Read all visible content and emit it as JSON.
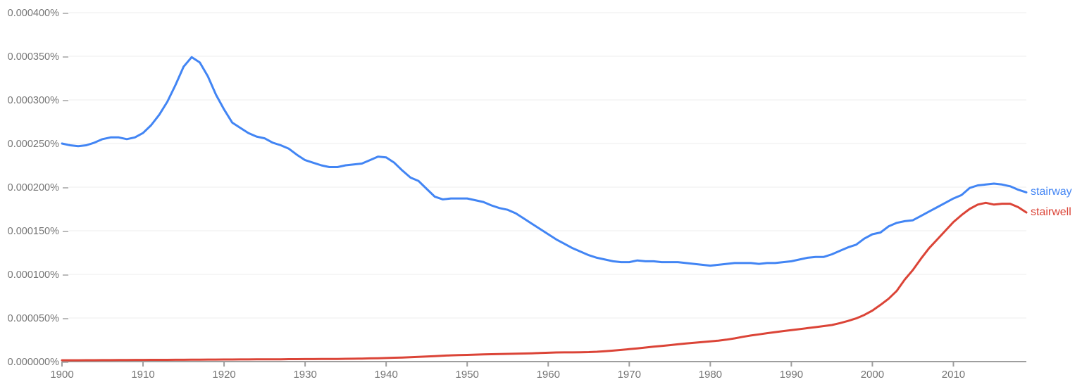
{
  "chart_data": {
    "type": "line",
    "title": "",
    "xlabel": "",
    "ylabel": "",
    "grid": true,
    "legend_position": "line-end-right",
    "x_axis": {
      "range": [
        1900,
        2019
      ],
      "tick_years": [
        1900,
        1910,
        1920,
        1930,
        1940,
        1950,
        1960,
        1970,
        1980,
        1990,
        2000,
        2010
      ]
    },
    "y_axis": {
      "range_percent": [
        0,
        0.0004
      ],
      "tick_values_percent": [
        0.0,
        5e-05,
        0.0001,
        0.00015,
        0.0002,
        0.00025,
        0.0003,
        0.00035,
        0.0004
      ],
      "tick_labels": [
        "0.000000%",
        "0.000050%",
        "0.000100%",
        "0.000150%",
        "0.000200%",
        "0.000250%",
        "0.000300%",
        "0.000350%",
        "0.000400%"
      ],
      "tick_mark": "–"
    },
    "years": [
      1900,
      1901,
      1902,
      1903,
      1904,
      1905,
      1906,
      1907,
      1908,
      1909,
      1910,
      1911,
      1912,
      1913,
      1914,
      1915,
      1916,
      1917,
      1918,
      1919,
      1920,
      1921,
      1922,
      1923,
      1924,
      1925,
      1926,
      1927,
      1928,
      1929,
      1930,
      1931,
      1932,
      1933,
      1934,
      1935,
      1936,
      1937,
      1938,
      1939,
      1940,
      1941,
      1942,
      1943,
      1944,
      1945,
      1946,
      1947,
      1948,
      1949,
      1950,
      1951,
      1952,
      1953,
      1954,
      1955,
      1956,
      1957,
      1958,
      1959,
      1960,
      1961,
      1962,
      1963,
      1964,
      1965,
      1966,
      1967,
      1968,
      1969,
      1970,
      1971,
      1972,
      1973,
      1974,
      1975,
      1976,
      1977,
      1978,
      1979,
      1980,
      1981,
      1982,
      1983,
      1984,
      1985,
      1986,
      1987,
      1988,
      1989,
      1990,
      1991,
      1992,
      1993,
      1994,
      1995,
      1996,
      1997,
      1998,
      1999,
      2000,
      2001,
      2002,
      2003,
      2004,
      2005,
      2006,
      2007,
      2008,
      2009,
      2010,
      2011,
      2012,
      2013,
      2014,
      2015,
      2016,
      2017,
      2018,
      2019
    ],
    "series": [
      {
        "name": "stairway",
        "label": "stairway",
        "color": "#4285f4",
        "values_percent": [
          0.00025,
          0.000248,
          0.000247,
          0.000248,
          0.000251,
          0.000255,
          0.000257,
          0.000257,
          0.000255,
          0.000257,
          0.000262,
          0.000271,
          0.000283,
          0.000298,
          0.000317,
          0.000338,
          0.000349,
          0.000343,
          0.000327,
          0.000306,
          0.000289,
          0.000274,
          0.000268,
          0.000262,
          0.000258,
          0.000256,
          0.000251,
          0.000248,
          0.000244,
          0.000237,
          0.000231,
          0.000228,
          0.000225,
          0.000223,
          0.000223,
          0.000225,
          0.000226,
          0.000227,
          0.000231,
          0.000235,
          0.000234,
          0.000228,
          0.000219,
          0.000211,
          0.000207,
          0.000198,
          0.000189,
          0.000186,
          0.000187,
          0.000187,
          0.000187,
          0.000185,
          0.000183,
          0.000179,
          0.000176,
          0.000174,
          0.00017,
          0.000164,
          0.000158,
          0.000152,
          0.000146,
          0.00014,
          0.000135,
          0.00013,
          0.000126,
          0.000122,
          0.000119,
          0.000117,
          0.000115,
          0.000114,
          0.000114,
          0.000116,
          0.000115,
          0.000115,
          0.000114,
          0.000114,
          0.000114,
          0.000113,
          0.000112,
          0.000111,
          0.00011,
          0.000111,
          0.000112,
          0.000113,
          0.000113,
          0.000113,
          0.000112,
          0.000113,
          0.000113,
          0.000114,
          0.000115,
          0.000117,
          0.000119,
          0.00012,
          0.00012,
          0.000123,
          0.000127,
          0.000131,
          0.000134,
          0.000141,
          0.000146,
          0.000148,
          0.000155,
          0.000159,
          0.000161,
          0.000162,
          0.000167,
          0.000172,
          0.000177,
          0.000182,
          0.000187,
          0.000191,
          0.000199,
          0.000202,
          0.000203,
          0.000204,
          0.000203,
          0.000201,
          0.000197,
          0.000194
        ]
      },
      {
        "name": "stairwell",
        "label": "stairwell",
        "color": "#db4437",
        "values_percent": [
          1.5e-06,
          1.5e-06,
          1.5e-06,
          1.6e-06,
          1.6e-06,
          1.7e-06,
          1.7e-06,
          1.8e-06,
          1.8e-06,
          1.9e-06,
          1.9e-06,
          2e-06,
          2e-06,
          2e-06,
          2.1e-06,
          2.1e-06,
          2.2e-06,
          2.2e-06,
          2.3e-06,
          2.3e-06,
          2.4e-06,
          2.4e-06,
          2.5e-06,
          2.5e-06,
          2.6e-06,
          2.6e-06,
          2.7e-06,
          2.7e-06,
          2.8e-06,
          2.8e-06,
          2.9e-06,
          2.9e-06,
          3e-06,
          3e-06,
          3.1e-06,
          3.2e-06,
          3.3e-06,
          3.5e-06,
          3.7e-06,
          3.9e-06,
          4.1e-06,
          4.4e-06,
          4.7e-06,
          5e-06,
          5.4e-06,
          5.8e-06,
          6.3e-06,
          6.8e-06,
          7.2e-06,
          7.5e-06,
          7.7e-06,
          8e-06,
          8.2e-06,
          8.5e-06,
          8.7e-06,
          8.9e-06,
          9e-06,
          9.3e-06,
          9.5e-06,
          9.8e-06,
          1.02e-05,
          1.05e-05,
          1.06e-05,
          1.06e-05,
          1.07e-05,
          1.09e-05,
          1.13e-05,
          1.19e-05,
          1.26e-05,
          1.34e-05,
          1.43e-05,
          1.52e-05,
          1.61e-05,
          1.71e-05,
          1.8e-05,
          1.89e-05,
          1.98e-05,
          2.07e-05,
          2.15e-05,
          2.24e-05,
          2.32e-05,
          2.4e-05,
          2.52e-05,
          2.66e-05,
          2.84e-05,
          2.99e-05,
          3.12e-05,
          3.26e-05,
          3.38e-05,
          3.5e-05,
          3.61e-05,
          3.72e-05,
          3.84e-05,
          3.95e-05,
          4.07e-05,
          4.19e-05,
          4.41e-05,
          4.66e-05,
          4.95e-05,
          5.35e-05,
          5.85e-05,
          6.5e-05,
          7.2e-05,
          8.1e-05,
          9.4e-05,
          0.000105,
          0.000118,
          0.00013,
          0.00014,
          0.00015,
          0.00016,
          0.000168,
          0.000175,
          0.00018,
          0.000182,
          0.00018,
          0.000181,
          0.000181,
          0.000177,
          0.000171
        ]
      }
    ]
  },
  "colors": {
    "background": "#ffffff",
    "gridline": "#ececec",
    "axis_line": "#9e9e9e",
    "tick_text": "#757575",
    "series_stairway": "#4285f4",
    "series_stairwell": "#db4437"
  }
}
